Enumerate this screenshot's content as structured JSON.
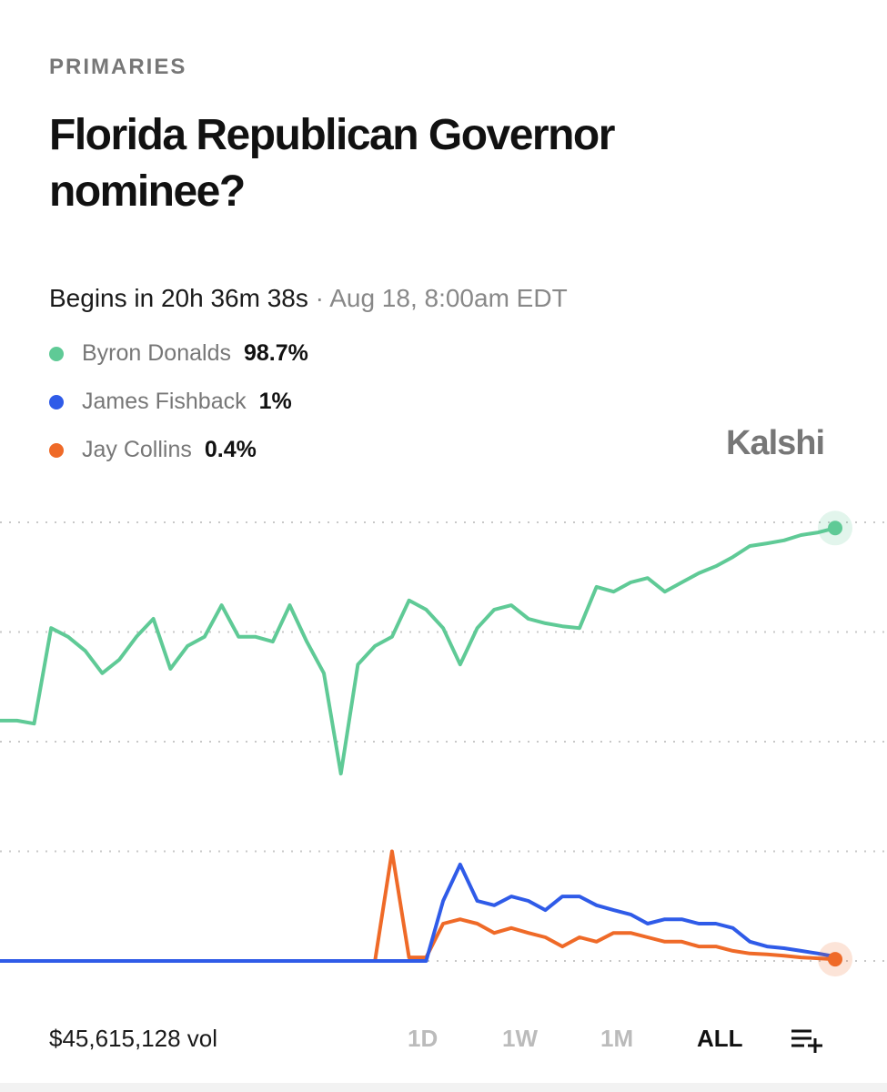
{
  "header": {
    "category": "PRIMARIES",
    "title": "Florida Republican Governor nominee?",
    "countdown": "Begins in 20h 36m 38s",
    "separator": "·",
    "date": "Aug 18, 8:00am EDT",
    "brand": "Kalshi"
  },
  "chart_data": {
    "type": "line",
    "ylim": [
      -4,
      104
    ],
    "yticks": [
      0,
      25,
      50,
      75,
      100
    ],
    "grid": true,
    "series": [
      {
        "name": "Byron Donalds",
        "value_label": "98.7%",
        "color": "#5fca96",
        "values": [
          54.8,
          54.8,
          54.1,
          75.9,
          73.9,
          70.7,
          65.6,
          68.7,
          73.9,
          78.0,
          66.6,
          71.8,
          73.9,
          81.1,
          73.9,
          73.9,
          72.8,
          81.1,
          72.8,
          65.6,
          42.7,
          67.6,
          71.8,
          73.9,
          82.2,
          80.1,
          75.9,
          67.6,
          75.9,
          80.1,
          81.1,
          78.0,
          77.0,
          76.3,
          75.9,
          85.3,
          84.2,
          86.3,
          87.3,
          84.2,
          86.3,
          88.4,
          90.0,
          92.1,
          94.6,
          95.2,
          95.9,
          97.1,
          97.7,
          98.7
        ]
      },
      {
        "name": "James Fishback",
        "value_label": "1%",
        "color": "#2f5be8",
        "values": [
          0,
          0,
          0,
          0,
          0,
          0,
          0,
          0,
          0,
          0,
          0,
          0,
          0,
          0,
          0,
          0,
          0,
          0,
          0,
          0,
          0,
          0,
          0,
          0,
          0,
          0,
          13.7,
          22,
          13.7,
          12.7,
          14.7,
          13.7,
          11.6,
          14.7,
          14.7,
          12.7,
          11.6,
          10.6,
          8.5,
          9.5,
          9.5,
          8.5,
          8.5,
          7.5,
          4.4,
          3.3,
          2.9,
          2.3,
          1.7,
          1.0
        ]
      },
      {
        "name": "Jay Collins",
        "value_label": "0.4%",
        "color": "#ef6a28",
        "values": [
          0,
          0,
          0,
          0,
          0,
          0,
          0,
          0,
          0,
          0,
          0,
          0,
          0,
          0,
          0,
          0,
          0,
          0,
          0,
          0,
          0,
          0,
          0,
          25,
          0.8,
          0.8,
          8.5,
          9.5,
          8.5,
          6.4,
          7.5,
          6.4,
          5.4,
          3.3,
          5.4,
          4.4,
          6.4,
          6.4,
          5.4,
          4.4,
          4.4,
          3.3,
          3.3,
          2.3,
          1.7,
          1.5,
          1.2,
          0.8,
          0.6,
          0.4
        ]
      }
    ]
  },
  "footer": {
    "volume": "$45,615,128 vol",
    "ranges": [
      "1D",
      "1W",
      "1M",
      "ALL"
    ],
    "selected_index": 3
  }
}
